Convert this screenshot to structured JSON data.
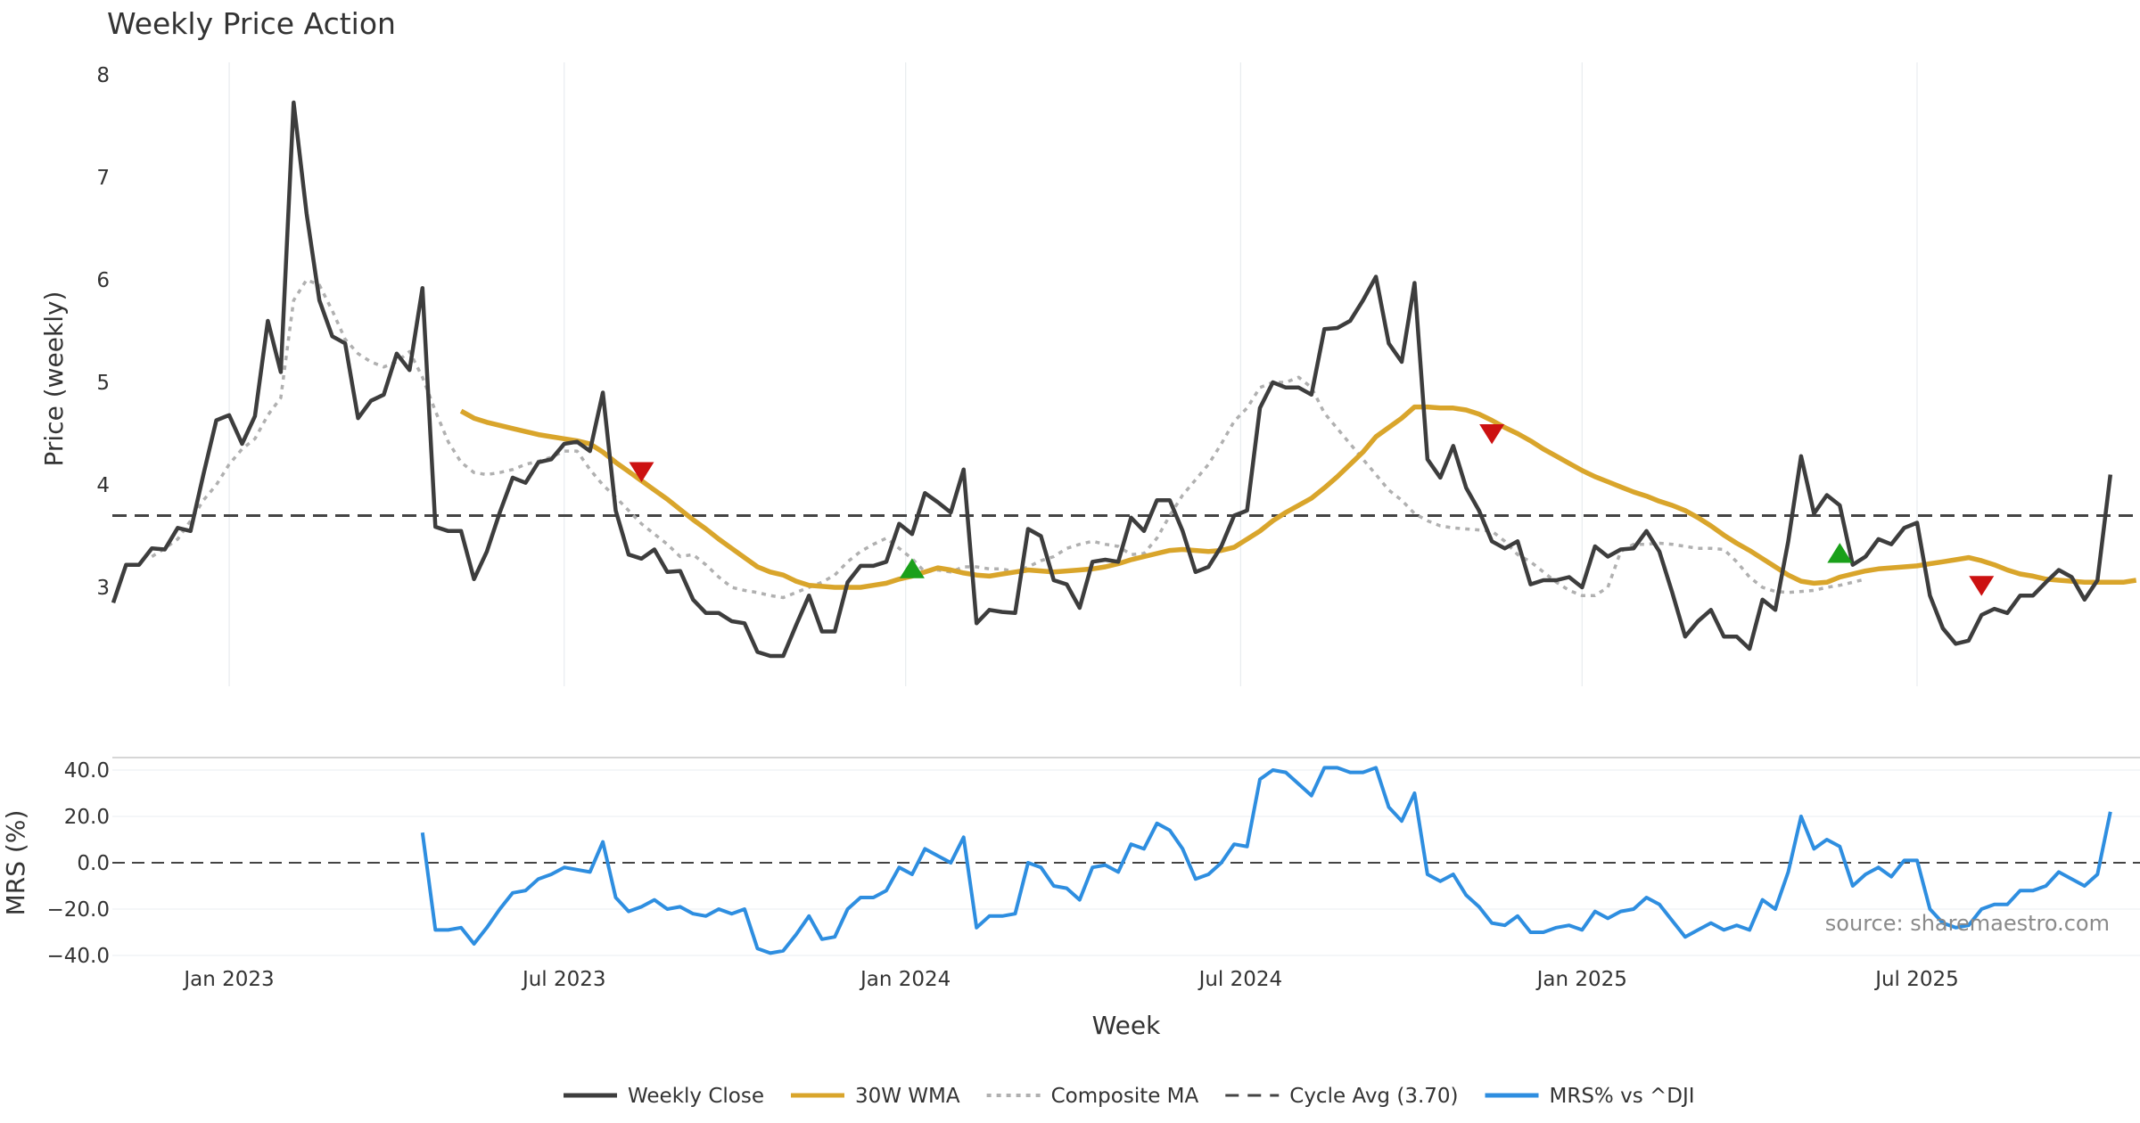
{
  "chart_data": {
    "type": "line",
    "title": "Weekly Price Action",
    "source_note": "source: sharemaestro.com",
    "xlabel": "Week",
    "colors": {
      "close": "#3d3d3d",
      "wma": "#d9a52b",
      "composite": "#b0b0b0",
      "cycle": "#444444",
      "mrs": "#2e8ee0",
      "sell": "#cc1111",
      "buy": "#1aa01a"
    },
    "x_ticks": [
      {
        "label": "Jan 2023",
        "week": 9
      },
      {
        "label": "Jul 2023",
        "week": 35
      },
      {
        "label": "Jan 2024",
        "week": 61.5
      },
      {
        "label": "Jul 2024",
        "week": 87.5
      },
      {
        "label": "Jan 2025",
        "week": 114
      },
      {
        "label": "Jul 2025",
        "week": 140
      }
    ],
    "x_range": [
      0,
      156
    ],
    "price_panel": {
      "ylabel": "Price (weekly)",
      "ylim": [
        1.95,
        8.0
      ],
      "y_ticks": [
        "3",
        "4",
        "5",
        "6",
        "7",
        "8"
      ],
      "cycle_avg": 3.7,
      "weekly_close": [
        2.85,
        3.22,
        3.22,
        3.38,
        3.37,
        3.58,
        3.55,
        4.1,
        4.63,
        4.68,
        4.4,
        4.67,
        5.6,
        5.1,
        7.73,
        6.65,
        5.8,
        5.45,
        5.38,
        4.65,
        4.82,
        4.88,
        5.28,
        5.12,
        5.92,
        3.59,
        3.55,
        3.55,
        3.08,
        3.35,
        3.73,
        4.07,
        4.02,
        4.22,
        4.25,
        4.4,
        4.42,
        4.33,
        4.9,
        3.75,
        3.32,
        3.28,
        3.37,
        3.15,
        3.16,
        2.88,
        2.75,
        2.75,
        2.67,
        2.65,
        2.37,
        2.33,
        2.33,
        2.63,
        2.92,
        2.57,
        2.57,
        3.05,
        3.21,
        3.21,
        3.25,
        3.62,
        3.52,
        3.92,
        3.83,
        3.73,
        4.15,
        2.65,
        2.78,
        2.76,
        2.75,
        3.57,
        3.5,
        3.07,
        3.03,
        2.8,
        3.25,
        3.27,
        3.25,
        3.68,
        3.55,
        3.85,
        3.85,
        3.55,
        3.15,
        3.2,
        3.4,
        3.7,
        3.75,
        4.75,
        5.0,
        4.95,
        4.95,
        4.88,
        5.52,
        5.53,
        5.6,
        5.8,
        6.03,
        5.38,
        5.2,
        5.97,
        4.25,
        4.07,
        4.38,
        3.97,
        3.75,
        3.45,
        3.38,
        3.45,
        3.03,
        3.07,
        3.07,
        3.1,
        3.0,
        3.4,
        3.3,
        3.37,
        3.38,
        3.55,
        3.35,
        2.95,
        2.52,
        2.67,
        2.78,
        2.52,
        2.52,
        2.4,
        2.88,
        2.78,
        3.45,
        4.28,
        3.72,
        3.9,
        3.8,
        3.22,
        3.3,
        3.47,
        3.42,
        3.58,
        3.63,
        2.92,
        2.6,
        2.45,
        2.48,
        2.73,
        2.79,
        2.75,
        2.92,
        2.92,
        3.05,
        3.17,
        3.1,
        2.88,
        3.07,
        4.1
      ],
      "wma_start_week": 27,
      "wma_30w": [
        4.72,
        4.65,
        4.61,
        4.58,
        4.55,
        4.52,
        4.49,
        4.47,
        4.45,
        4.43,
        4.4,
        4.32,
        4.22,
        4.13,
        4.04,
        3.95,
        3.86,
        3.76,
        3.66,
        3.57,
        3.47,
        3.38,
        3.29,
        3.2,
        3.15,
        3.12,
        3.06,
        3.02,
        3.01,
        3.0,
        3.0,
        3.0,
        3.02,
        3.04,
        3.08,
        3.11,
        3.15,
        3.19,
        3.17,
        3.14,
        3.12,
        3.11,
        3.13,
        3.15,
        3.17,
        3.16,
        3.15,
        3.16,
        3.17,
        3.18,
        3.2,
        3.23,
        3.27,
        3.3,
        3.33,
        3.36,
        3.37,
        3.36,
        3.35,
        3.36,
        3.39,
        3.47,
        3.55,
        3.65,
        3.73,
        3.8,
        3.87,
        3.97,
        4.08,
        4.2,
        4.32,
        4.47,
        4.56,
        4.65,
        4.76,
        4.76,
        4.75,
        4.75,
        4.73,
        4.69,
        4.63,
        4.56,
        4.5,
        4.43,
        4.35,
        4.28,
        4.21,
        4.14,
        4.08,
        4.03,
        3.98,
        3.93,
        3.89,
        3.84,
        3.8,
        3.75,
        3.68,
        3.6,
        3.51,
        3.43,
        3.36,
        3.28,
        3.2,
        3.12,
        3.06,
        3.04,
        3.05,
        3.1,
        3.13,
        3.16,
        3.18,
        3.19,
        3.2,
        3.21,
        3.23,
        3.25,
        3.27,
        3.29,
        3.26,
        3.22,
        3.17,
        3.13,
        3.11,
        3.08,
        3.07,
        3.06,
        3.05,
        3.05,
        3.05,
        3.05,
        3.07
      ],
      "composite_start_week": 3,
      "composite_ma": [
        3.3,
        3.38,
        3.47,
        3.65,
        3.85,
        4.0,
        4.2,
        4.35,
        4.45,
        4.68,
        4.85,
        5.8,
        6.0,
        5.95,
        5.7,
        5.42,
        5.28,
        5.2,
        5.15,
        5.2,
        5.3,
        5.05,
        4.72,
        4.42,
        4.22,
        4.12,
        4.1,
        4.12,
        4.15,
        4.2,
        4.23,
        4.27,
        4.33,
        4.33,
        4.15,
        4.0,
        3.88,
        3.75,
        3.62,
        3.52,
        3.42,
        3.3,
        3.32,
        3.22,
        3.1,
        3.0,
        2.97,
        2.95,
        2.92,
        2.9,
        2.95,
        3.0,
        3.05,
        3.12,
        3.25,
        3.35,
        3.42,
        3.48,
        3.38,
        3.28,
        3.15,
        3.17,
        3.15,
        3.2,
        3.2,
        3.18,
        3.18,
        3.15,
        3.2,
        3.26,
        3.3,
        3.38,
        3.42,
        3.45,
        3.42,
        3.4,
        3.32,
        3.33,
        3.48,
        3.7,
        3.9,
        4.05,
        4.2,
        4.4,
        4.62,
        4.75,
        4.95,
        5.0,
        5.0,
        5.05,
        4.95,
        4.7,
        4.55,
        4.4,
        4.25,
        4.1,
        3.95,
        3.85,
        3.72,
        3.65,
        3.6,
        3.58,
        3.57,
        3.56,
        3.55,
        3.45,
        3.32,
        3.25,
        3.15,
        3.05,
        2.97,
        2.92,
        2.92,
        3.0,
        3.35,
        3.42,
        3.42,
        3.43,
        3.42,
        3.4,
        3.38,
        3.38,
        3.37,
        3.25,
        3.1,
        3.0,
        2.96,
        2.95,
        2.96,
        2.97,
        3.0,
        3.02,
        3.05,
        3.08
      ],
      "signals": [
        {
          "type": "sell",
          "week": 41,
          "value": 4.13
        },
        {
          "type": "buy",
          "week": 62,
          "value": 3.18
        },
        {
          "type": "sell",
          "week": 107,
          "value": 4.5
        },
        {
          "type": "buy",
          "week": 134,
          "value": 3.33
        },
        {
          "type": "sell",
          "week": 145,
          "value": 3.02
        }
      ]
    },
    "mrs_panel": {
      "ylabel": "MRS (%)",
      "ylim": [
        -40.0,
        40.0
      ],
      "y_ticks": [
        "40.0",
        "20.0",
        "0.0",
        "−20.0",
        "−40.0"
      ],
      "start_week": 24,
      "mrs_pct_vs_dji": [
        13,
        -29,
        -29,
        -28,
        -35,
        -28,
        -20,
        -13,
        -12,
        -7,
        -5,
        -2,
        -3,
        -4,
        9,
        -15,
        -21,
        -19,
        -16,
        -20,
        -19,
        -22,
        -23,
        -20,
        -22,
        -20,
        -37,
        -39,
        -38,
        -31,
        -23,
        -33,
        -32,
        -20,
        -15,
        -15,
        -12,
        -2,
        -5,
        6,
        3,
        0,
        11,
        -28,
        -23,
        -23,
        -22,
        0,
        -2,
        -10,
        -11,
        -16,
        -2,
        -1,
        -4,
        8,
        6,
        17,
        14,
        6,
        -7,
        -5,
        0,
        8,
        7,
        36,
        40,
        39,
        34,
        29,
        41,
        41,
        39,
        39,
        41,
        24,
        18,
        30,
        -5,
        -8,
        -5,
        -14,
        -19,
        -26,
        -27,
        -23,
        -30,
        -30,
        -28,
        -27,
        -29,
        -21,
        -24,
        -21,
        -20,
        -15,
        -18,
        -25,
        -32,
        -29,
        -26,
        -29,
        -27,
        -29,
        -16,
        -20,
        -4,
        20,
        6,
        10,
        7,
        -10,
        -5,
        -2,
        -6,
        1,
        1,
        -20,
        -26,
        -28,
        -27,
        -20,
        -18,
        -18,
        -12,
        -12,
        -10,
        -4,
        -7,
        -10,
        -5,
        22
      ]
    },
    "legend": [
      {
        "key": "close",
        "label": "Weekly Close",
        "style": "solid"
      },
      {
        "key": "wma",
        "label": "30W WMA",
        "style": "solid"
      },
      {
        "key": "composite",
        "label": "Composite MA",
        "style": "dotted"
      },
      {
        "key": "cycle",
        "label": "Cycle Avg (3.70)",
        "style": "dashed"
      },
      {
        "key": "mrs",
        "label": "MRS% vs ^DJI",
        "style": "solid"
      }
    ]
  }
}
